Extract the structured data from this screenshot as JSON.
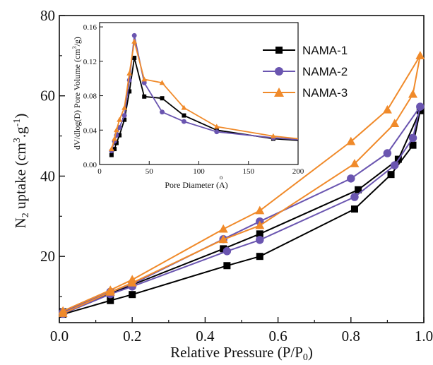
{
  "chart_data": [
    {
      "type": "line",
      "xlabel": "Relative Pressure (P/P",
      "xlabel_sub": "0",
      "xlabel_end": ")",
      "ylabel_prefix": "N",
      "ylabel_sub": "2",
      "ylabel_main": " uptake (cm",
      "ylabel_sup1": "3",
      "ylabel_mid": ".g",
      "ylabel_sup2": "-1",
      "ylabel_end": ")",
      "xlim": [
        0.0,
        1.0
      ],
      "ylim": [
        3.5,
        80
      ],
      "xticks": [
        "0.0",
        "0.2",
        "0.4",
        "0.6",
        "0.8",
        "1.0"
      ],
      "yticks": [
        "20",
        "40",
        "60",
        "80"
      ],
      "legend_position": "top-right",
      "series": [
        {
          "name": "NAMA-1",
          "color": "#000000",
          "marker": "square",
          "x": [
            0.01,
            0.14,
            0.2,
            0.46,
            0.55,
            0.81,
            0.91,
            0.97,
            0.99,
            0.93,
            0.82,
            0.55,
            0.45,
            0.2,
            0.14,
            0.01
          ],
          "y": [
            5.6,
            9.0,
            10.5,
            17.7,
            20.0,
            31.8,
            40.4,
            47.7,
            56.3,
            44.2,
            36.6,
            25.6,
            21.9,
            12.9,
            10.7,
            6.2
          ]
        },
        {
          "name": "NAMA-2",
          "color": "#6A55B0",
          "marker": "circle",
          "x": [
            0.01,
            0.14,
            0.2,
            0.46,
            0.55,
            0.81,
            0.92,
            0.97,
            0.99,
            0.9,
            0.8,
            0.55,
            0.45,
            0.2,
            0.14,
            0.01
          ],
          "y": [
            5.7,
            10.6,
            12.5,
            21.3,
            24.1,
            34.8,
            42.7,
            49.5,
            57.3,
            45.7,
            39.4,
            28.7,
            24.3,
            13.1,
            11.2,
            6.1
          ]
        },
        {
          "name": "NAMA-3",
          "color": "#F08A2A",
          "marker": "triangle",
          "x": [
            0.01,
            0.14,
            0.2,
            0.45,
            0.55,
            0.81,
            0.92,
            0.97,
            0.99,
            0.9,
            0.8,
            0.55,
            0.45,
            0.2,
            0.14,
            0.01
          ],
          "y": [
            5.8,
            11.1,
            13.4,
            24.2,
            27.7,
            43.1,
            53.1,
            60.4,
            70.0,
            56.5,
            48.6,
            31.4,
            26.8,
            14.2,
            11.6,
            6.4
          ]
        }
      ]
    },
    {
      "type": "line",
      "xlabel": "Pore Diameter (",
      "xlabel_unit": "A",
      "xlabel_unit_mark": "o",
      "xlabel_end": ")",
      "ylabel": "dV/dlog(D) Pore Volume (cm",
      "ylabel_sup": "3",
      "ylabel_end": "/g)",
      "xlim": [
        0,
        200
      ],
      "ylim": [
        0,
        0.165
      ],
      "xticks": [
        "0",
        "50",
        "100",
        "150",
        "200"
      ],
      "yticks": [
        "0.00",
        "0.04",
        "0.08",
        "0.12",
        "0.16"
      ],
      "series": [
        {
          "name": "NAMA-1",
          "color": "#000000",
          "marker": "square",
          "x": [
            12,
            15,
            17,
            20,
            25,
            30,
            35,
            45,
            63,
            85,
            118,
            175,
            200
          ],
          "y": [
            0.011,
            0.018,
            0.025,
            0.034,
            0.052,
            0.085,
            0.124,
            0.079,
            0.077,
            0.057,
            0.04,
            0.03,
            0.028
          ],
          "marker_idx": [
            0,
            1,
            2,
            3,
            4,
            5,
            6,
            7,
            8,
            9,
            10,
            11
          ]
        },
        {
          "name": "NAMA-2",
          "color": "#6A55B0",
          "marker": "circle",
          "x": [
            12,
            15,
            17,
            20,
            25,
            30,
            35,
            45,
            63,
            85,
            118,
            175,
            200
          ],
          "y": [
            0.016,
            0.027,
            0.034,
            0.043,
            0.057,
            0.098,
            0.15,
            0.095,
            0.061,
            0.05,
            0.038,
            0.031,
            0.029
          ],
          "marker_idx": [
            0,
            1,
            2,
            3,
            4,
            5,
            6,
            7,
            8,
            9,
            10,
            11
          ]
        },
        {
          "name": "NAMA-3",
          "color": "#F08A2A",
          "marker": "triangle",
          "x": [
            12,
            15,
            17,
            20,
            25,
            30,
            35,
            45,
            63,
            85,
            118,
            175,
            200
          ],
          "y": [
            0.018,
            0.03,
            0.04,
            0.052,
            0.066,
            0.106,
            0.143,
            0.099,
            0.095,
            0.066,
            0.044,
            0.033,
            0.03
          ],
          "marker_idx": [
            0,
            1,
            2,
            3,
            4,
            5,
            6,
            7,
            8,
            9,
            10,
            11
          ]
        }
      ]
    }
  ]
}
